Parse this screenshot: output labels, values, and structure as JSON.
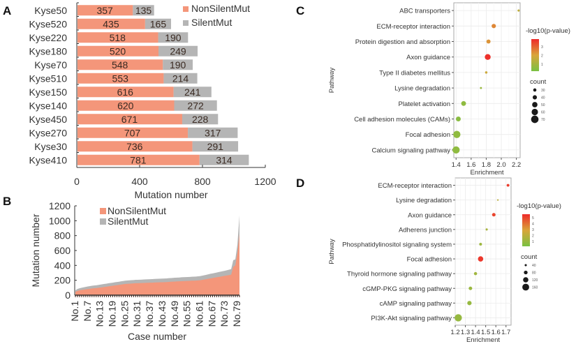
{
  "colors": {
    "nonsilent": "#f4967a",
    "silent": "#b5b5b5",
    "axis": "#333333",
    "grid": "#ebebeb",
    "panel_border": "#aaaaaa",
    "low": "#7ac142",
    "mid": "#d9a53a",
    "high": "#ee2a2a"
  },
  "chart_data": [
    {
      "panel": "A",
      "type": "bar",
      "orientation": "horizontal",
      "stacked": true,
      "categories": [
        "Kyse50",
        "Kyse520",
        "Kyse220",
        "Kyse180",
        "Kyse70",
        "Kyse510",
        "Kyse150",
        "Kyse140",
        "Kyse450",
        "Kyse270",
        "Kyse30",
        "Kyse410"
      ],
      "series": [
        {
          "name": "NonSilentMut",
          "values": [
            357,
            435,
            518,
            520,
            548,
            553,
            616,
            620,
            671,
            707,
            736,
            781
          ]
        },
        {
          "name": "SilentMut",
          "values": [
            135,
            165,
            190,
            249,
            190,
            214,
            241,
            272,
            228,
            317,
            291,
            314
          ]
        }
      ],
      "xlabel": "Mutation number",
      "ylabel": "",
      "xlim": [
        0,
        1200
      ],
      "xticks": [
        0,
        400,
        800,
        1200
      ],
      "legend": "top-right"
    },
    {
      "panel": "B",
      "type": "area",
      "stacked": true,
      "x_count": 80,
      "x_tick_labels": [
        "No.1",
        "No.7",
        "No.13",
        "No.19",
        "No.25",
        "No.31",
        "No.37",
        "No.43",
        "No.49",
        "No.55",
        "No.61",
        "No.67",
        "No.73",
        "No.79"
      ],
      "series": [
        {
          "name": "NonSilentMut",
          "values": [
            45,
            58,
            65,
            70,
            74,
            78,
            82,
            86,
            90,
            92,
            95,
            98,
            102,
            106,
            110,
            114,
            118,
            122,
            126,
            130,
            134,
            138,
            142,
            146,
            150,
            152,
            154,
            156,
            158,
            160,
            160,
            162,
            163,
            164,
            165,
            166,
            167,
            168,
            170,
            171,
            172,
            173,
            174,
            175,
            176,
            178,
            180,
            182,
            183,
            185,
            186,
            188,
            189,
            190,
            191,
            192,
            194,
            195,
            196,
            198,
            200,
            205,
            210,
            215,
            220,
            225,
            230,
            235,
            240,
            245,
            250,
            255,
            260,
            265,
            270,
            275,
            380,
            400,
            560,
            820
          ]
        },
        {
          "name": "SilentMut",
          "values": [
            20,
            25,
            28,
            30,
            32,
            33,
            35,
            36,
            37,
            38,
            38,
            39,
            40,
            40,
            41,
            41,
            42,
            42,
            42,
            43,
            43,
            43,
            44,
            44,
            44,
            45,
            45,
            45,
            45,
            46,
            46,
            46,
            46,
            47,
            47,
            47,
            47,
            48,
            48,
            48,
            48,
            49,
            49,
            49,
            49,
            50,
            50,
            50,
            51,
            51,
            51,
            52,
            52,
            52,
            53,
            53,
            53,
            54,
            54,
            55,
            55,
            56,
            57,
            58,
            60,
            62,
            62,
            63,
            64,
            65,
            66,
            67,
            68,
            70,
            72,
            75,
            90,
            80,
            120,
            250
          ]
        }
      ],
      "xlabel": "Case number",
      "ylabel": "Mutation number",
      "ylim": [
        0,
        1200
      ],
      "yticks": [
        0,
        200,
        400,
        600,
        800,
        1000,
        1200
      ],
      "legend": "top-left"
    },
    {
      "panel": "C",
      "type": "scatter",
      "subtype": "bubble",
      "categories": [
        "ABC transporters",
        "ECM-receptor interaction",
        "Protein digestion and absorption",
        "Axon guidance",
        "Type II diabetes mellitus",
        "Lysine degradation",
        "Platelet activation",
        "Cell adhesion molecules (CAMs)",
        "Focal adhesion",
        "Calcium signaling pathway"
      ],
      "enrichment": [
        2.23,
        1.9,
        1.83,
        1.82,
        1.8,
        1.73,
        1.5,
        1.43,
        1.41,
        1.4
      ],
      "neg_log10_p": [
        1.5,
        2.5,
        2.3,
        3.8,
        1.8,
        0.8,
        0.6,
        0.5,
        0.6,
        0.6
      ],
      "count": [
        20,
        40,
        38,
        55,
        22,
        18,
        45,
        45,
        68,
        68
      ],
      "xlabel": "Enrichment",
      "ylabel": "Pathway",
      "xlim": [
        1.37,
        2.25
      ],
      "xticks": [
        1.4,
        1.6,
        1.8,
        2.0,
        2.2
      ],
      "color_legend": {
        "title": "-log10(p-value)",
        "ticks": [
          1,
          2,
          3
        ]
      },
      "size_legend": {
        "title": "count",
        "ticks": [
          30,
          40,
          50,
          60,
          70
        ]
      },
      "grid": true,
      "legend": "right"
    },
    {
      "panel": "D",
      "type": "scatter",
      "subtype": "bubble",
      "categories": [
        "ECM-receptor interaction",
        "Lysine degradation",
        "Axon guidance",
        "Adherens junction",
        "Phosphatidylinositol signaling system",
        "Focal adhesion",
        "Thyroid hormone signaling pathway",
        "cGMP-PKG signaling pathway",
        "cAMP signaling pathway",
        "PI3K-Akt signaling pathway"
      ],
      "enrichment": [
        1.72,
        1.62,
        1.58,
        1.51,
        1.45,
        1.45,
        1.4,
        1.35,
        1.34,
        1.23
      ],
      "neg_log10_p": [
        5.2,
        2.0,
        5.0,
        1.5,
        1.2,
        5.3,
        1.3,
        1.1,
        1.0,
        1.0
      ],
      "count": [
        55,
        25,
        75,
        40,
        55,
        120,
        65,
        75,
        95,
        170
      ],
      "xlabel": "Enrichment",
      "ylabel": "Pathway",
      "xlim": [
        1.2,
        1.75
      ],
      "xticks": [
        1.2,
        1.3,
        1.4,
        1.5,
        1.6,
        1.7
      ],
      "color_legend": {
        "title": "-log10(p-value)",
        "ticks": [
          1,
          2,
          3,
          4,
          5
        ]
      },
      "size_legend": {
        "title": "count",
        "ticks": [
          40,
          80,
          120,
          160
        ]
      },
      "grid": true,
      "legend": "right"
    }
  ]
}
